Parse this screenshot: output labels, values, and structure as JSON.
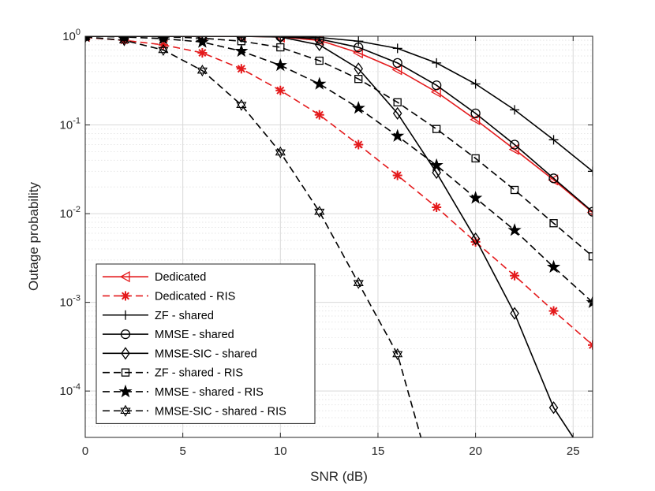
{
  "chart_data": {
    "type": "line",
    "title": "",
    "xlabel": "SNR (dB)",
    "ylabel": "Outage probability",
    "xlim": [
      0,
      26
    ],
    "ylim": [
      3e-05,
      1
    ],
    "yscale": "log",
    "grid": true,
    "legend_position": "bottom-left",
    "x_ticks": [
      0,
      5,
      10,
      15,
      20,
      25
    ],
    "x_tick_labels": [
      "0",
      "5",
      "10",
      "15",
      "20",
      "25"
    ],
    "y_ticks": [
      1,
      0.1,
      0.01,
      0.001,
      0.0001
    ],
    "y_tick_labels": [
      {
        "base": "10",
        "exp": "0"
      },
      {
        "base": "10",
        "exp": "-1"
      },
      {
        "base": "10",
        "exp": "-2"
      },
      {
        "base": "10",
        "exp": "-3"
      },
      {
        "base": "10",
        "exp": "-4"
      }
    ],
    "series": [
      {
        "name": "Dedicated",
        "color": "#e41a1c",
        "dash": "solid",
        "marker": "triangle-left",
        "x": [
          0,
          2,
          4,
          6,
          8,
          10,
          12,
          14,
          16,
          18,
          20,
          22,
          24,
          26
        ],
        "y": [
          1,
          1,
          1,
          1,
          1,
          0.98,
          0.9,
          0.65,
          0.42,
          0.235,
          0.115,
          0.053,
          0.024,
          0.0103
        ]
      },
      {
        "name": "Dedicated - RIS",
        "color": "#e41a1c",
        "dash": "dashed",
        "marker": "asterisk",
        "x": [
          0,
          2,
          4,
          6,
          8,
          10,
          12,
          14,
          16,
          18,
          20,
          22,
          24,
          26
        ],
        "y": [
          0.97,
          0.9,
          0.8,
          0.65,
          0.43,
          0.245,
          0.13,
          0.06,
          0.027,
          0.0118,
          0.0048,
          0.002,
          0.0008,
          0.00033
        ]
      },
      {
        "name": "ZF - shared",
        "color": "#000000",
        "dash": "solid",
        "marker": "plus",
        "x": [
          0,
          2,
          4,
          6,
          8,
          10,
          12,
          14,
          16,
          18,
          20,
          22,
          24,
          26
        ],
        "y": [
          1,
          1,
          1,
          1,
          1,
          1,
          0.97,
          0.88,
          0.73,
          0.5,
          0.29,
          0.148,
          0.068,
          0.03
        ]
      },
      {
        "name": "MMSE - shared",
        "color": "#000000",
        "dash": "solid",
        "marker": "circle",
        "x": [
          0,
          2,
          4,
          6,
          8,
          10,
          12,
          14,
          16,
          18,
          20,
          22,
          24,
          26
        ],
        "y": [
          1,
          1,
          1,
          1,
          1,
          0.99,
          0.93,
          0.75,
          0.5,
          0.28,
          0.135,
          0.06,
          0.025,
          0.0105
        ]
      },
      {
        "name": "MMSE-SIC - shared",
        "color": "#000000",
        "dash": "solid",
        "marker": "diamond",
        "x": [
          0,
          2,
          4,
          6,
          8,
          10,
          12,
          14,
          16,
          18,
          20,
          22,
          24,
          25
        ],
        "y": [
          1,
          1,
          1,
          1,
          1,
          0.98,
          0.8,
          0.43,
          0.135,
          0.029,
          0.0052,
          0.00075,
          6.5e-05,
          3e-05
        ]
      },
      {
        "name": "ZF - shared - RIS",
        "color": "#000000",
        "dash": "dashed",
        "marker": "square",
        "x": [
          0,
          2,
          4,
          6,
          8,
          10,
          12,
          14,
          16,
          18,
          20,
          22,
          24,
          26
        ],
        "y": [
          1,
          1,
          0.99,
          0.95,
          0.88,
          0.75,
          0.53,
          0.33,
          0.18,
          0.09,
          0.042,
          0.0185,
          0.0078,
          0.0033
        ]
      },
      {
        "name": "MMSE - shared - RIS",
        "color": "#000000",
        "dash": "dashed",
        "marker": "star",
        "x": [
          0,
          2,
          4,
          6,
          8,
          10,
          12,
          14,
          16,
          18,
          20,
          22,
          24,
          26
        ],
        "y": [
          1,
          0.98,
          0.94,
          0.86,
          0.68,
          0.47,
          0.29,
          0.155,
          0.075,
          0.035,
          0.015,
          0.0065,
          0.0025,
          0.001
        ]
      },
      {
        "name": "MMSE-SIC - shared - RIS",
        "color": "#000000",
        "dash": "dashed",
        "marker": "hexagram",
        "x": [
          0,
          2,
          4,
          6,
          8,
          10,
          12,
          14,
          16,
          17.2
        ],
        "y": [
          0.98,
          0.9,
          0.7,
          0.41,
          0.168,
          0.049,
          0.0105,
          0.00165,
          0.00026,
          3e-05
        ]
      }
    ]
  }
}
